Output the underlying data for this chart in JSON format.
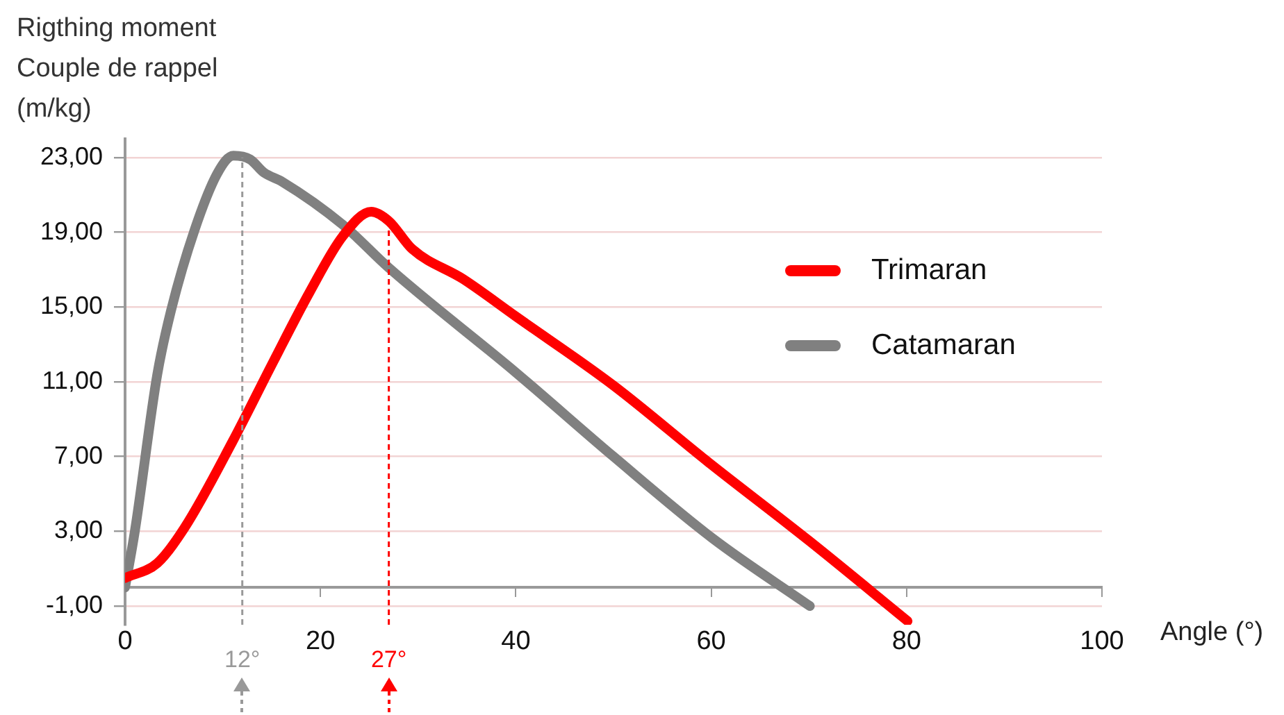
{
  "chart_data": {
    "type": "line",
    "ylabel": "Rigthing moment\nCouple de rappel\n(m/kg)",
    "xlabel": "Angle (°)",
    "xlim": [
      0,
      100
    ],
    "xticks": [
      0,
      20,
      40,
      60,
      80,
      100
    ],
    "ylim": [
      -2,
      24
    ],
    "yticks": [
      {
        "value": -1,
        "label": "-1,00"
      },
      {
        "value": 3,
        "label": "3,00"
      },
      {
        "value": 7,
        "label": "7,00"
      },
      {
        "value": 11,
        "label": "11,00"
      },
      {
        "value": 15,
        "label": "15,00"
      },
      {
        "value": 19,
        "label": "19,00"
      },
      {
        "value": 23,
        "label": "23,00"
      }
    ],
    "grid": "y",
    "legend": "right",
    "marker": "none",
    "line_style": "solid",
    "series": [
      {
        "name": "Trimaran",
        "color": "#ff0000",
        "x": [
          0,
          3.3,
          6.1,
          11,
          15.2,
          18.9,
          22.3,
          25.2,
          27,
          29.4,
          34.6,
          40,
          50,
          59.7,
          70,
          80.1
        ],
        "values": [
          0.5,
          1.3,
          3.2,
          7.8,
          12.1,
          15.8,
          18.8,
          20.1,
          19.6,
          18.1,
          16.5,
          14.5,
          10.8,
          6.7,
          2.5,
          -1.8
        ]
      },
      {
        "name": "Catamaran",
        "color": "#808080",
        "x": [
          0,
          1,
          3.3,
          4.7,
          7.1,
          9.5,
          11.1,
          12.8,
          14.2,
          16.1,
          22.3,
          27,
          40,
          50,
          60.2,
          70.1
        ],
        "values": [
          0,
          3,
          11.4,
          14.8,
          19.1,
          22.2,
          23.1,
          22.9,
          22.2,
          21.7,
          19.4,
          17.1,
          11.5,
          7,
          2.6,
          -1
        ]
      }
    ],
    "ref_lines": [
      {
        "axis": "x",
        "value": 12,
        "label": "12°",
        "color": "#999999",
        "line_style": "dashed"
      },
      {
        "axis": "x",
        "value": 27,
        "label": "27°",
        "color": "#ff0000",
        "line_style": "dashed"
      }
    ]
  }
}
